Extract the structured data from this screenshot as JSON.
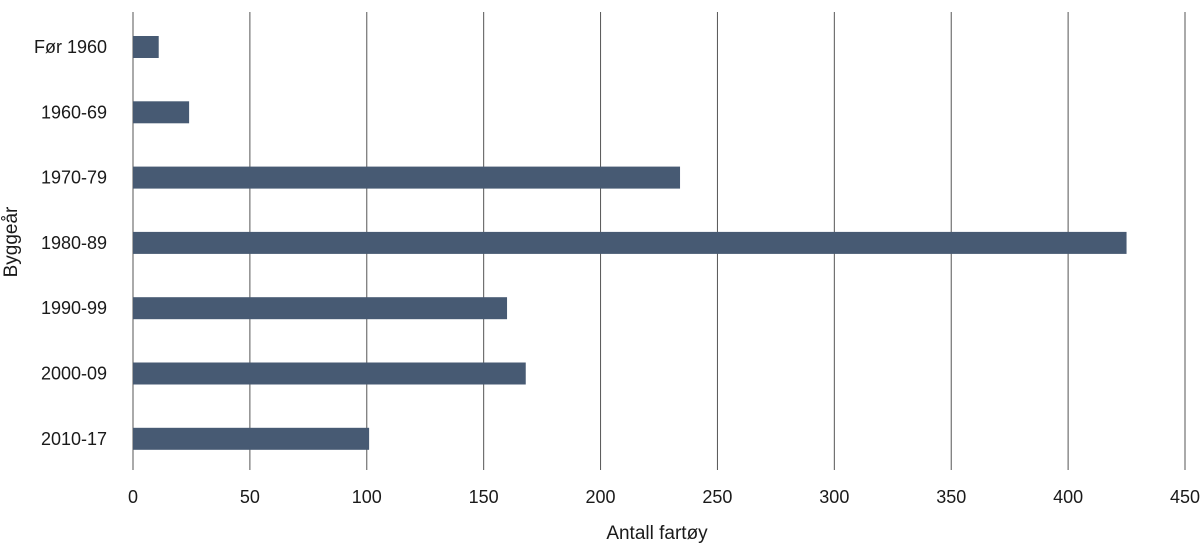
{
  "chart_data": {
    "type": "bar",
    "orientation": "horizontal",
    "categories": [
      "Før 1960",
      "1960-69",
      "1970-79",
      "1980-89",
      "1990-99",
      "2000-09",
      "2010-17"
    ],
    "values": [
      11,
      24,
      234,
      425,
      160,
      168,
      101
    ],
    "xlabel": "Antall fartøy",
    "ylabel": "Byggeår",
    "xlim": [
      0,
      450
    ],
    "xticks": [
      0,
      50,
      100,
      150,
      200,
      250,
      300,
      350,
      400,
      450
    ],
    "grid": "vertical",
    "legend": "none",
    "bar_color": "#475a73",
    "grid_color": "#555555"
  }
}
